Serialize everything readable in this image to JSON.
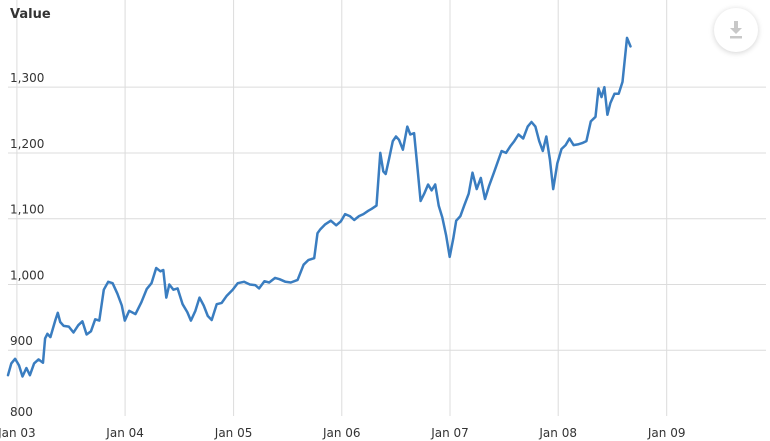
{
  "chart_data": {
    "type": "line",
    "ylabel": "Value",
    "xlabel": "",
    "ylim": [
      800,
      1390
    ],
    "xlim": [
      "2002-11-01",
      "2009-11-01"
    ],
    "y_ticks": [
      "900",
      "1,000",
      "1,100",
      "1,200",
      "1,300"
    ],
    "y_bottom_label": "800",
    "x_ticks": [
      {
        "date": "2002-12-01",
        "label": "Jan 03"
      },
      {
        "date": "2003-12-01",
        "label": "Jan 04"
      },
      {
        "date": "2004-12-01",
        "label": "Jan 05"
      },
      {
        "date": "2005-12-01",
        "label": "Jan 06"
      },
      {
        "date": "2006-12-01",
        "label": "Jan 07"
      },
      {
        "date": "2007-12-01",
        "label": "Jan 08"
      },
      {
        "date": "2008-12-01",
        "label": "Jan 09"
      }
    ],
    "grid": true,
    "legend": "none",
    "series": [
      {
        "color": "#3a7dc0",
        "points": [
          [
            "2002-11-01",
            862
          ],
          [
            "2002-11-12",
            880
          ],
          [
            "2002-11-25",
            887
          ],
          [
            "2002-12-08",
            877
          ],
          [
            "2002-12-20",
            860
          ],
          [
            "2003-01-02",
            873
          ],
          [
            "2003-01-14",
            862
          ],
          [
            "2003-01-28",
            880
          ],
          [
            "2003-02-12",
            886
          ],
          [
            "2003-02-27",
            881
          ],
          [
            "2003-03-06",
            918
          ],
          [
            "2003-03-14",
            925
          ],
          [
            "2003-03-24",
            920
          ],
          [
            "2003-04-10",
            946
          ],
          [
            "2003-04-18",
            957
          ],
          [
            "2003-04-26",
            943
          ],
          [
            "2003-05-08",
            937
          ],
          [
            "2003-05-25",
            936
          ],
          [
            "2003-06-10",
            927
          ],
          [
            "2003-06-26",
            938
          ],
          [
            "2003-07-10",
            944
          ],
          [
            "2003-07-24",
            924
          ],
          [
            "2003-08-08",
            929
          ],
          [
            "2003-08-22",
            947
          ],
          [
            "2003-09-05",
            945
          ],
          [
            "2003-09-20",
            992
          ],
          [
            "2003-10-05",
            1004
          ],
          [
            "2003-10-20",
            1002
          ],
          [
            "2003-11-05",
            986
          ],
          [
            "2003-11-20",
            968
          ],
          [
            "2003-11-30",
            945
          ],
          [
            "2003-12-15",
            960
          ],
          [
            "2004-01-05",
            955
          ],
          [
            "2004-01-25",
            973
          ],
          [
            "2004-02-12",
            993
          ],
          [
            "2004-02-28",
            1002
          ],
          [
            "2004-03-15",
            1025
          ],
          [
            "2004-03-29",
            1020
          ],
          [
            "2004-04-08",
            1022
          ],
          [
            "2004-04-18",
            980
          ],
          [
            "2004-04-28",
            1000
          ],
          [
            "2004-05-12",
            992
          ],
          [
            "2004-05-26",
            994
          ],
          [
            "2004-06-12",
            970
          ],
          [
            "2004-06-28",
            958
          ],
          [
            "2004-07-10",
            945
          ],
          [
            "2004-07-25",
            960
          ],
          [
            "2004-08-08",
            980
          ],
          [
            "2004-08-22",
            968
          ],
          [
            "2004-09-05",
            952
          ],
          [
            "2004-09-18",
            946
          ],
          [
            "2004-10-05",
            970
          ],
          [
            "2004-10-22",
            972
          ],
          [
            "2004-11-08",
            983
          ],
          [
            "2004-11-28",
            992
          ],
          [
            "2004-12-15",
            1002
          ],
          [
            "2005-01-05",
            1004
          ],
          [
            "2005-01-25",
            1000
          ],
          [
            "2005-02-12",
            999
          ],
          [
            "2005-02-25",
            994
          ],
          [
            "2005-03-15",
            1005
          ],
          [
            "2005-03-31",
            1003
          ],
          [
            "2005-04-20",
            1010
          ],
          [
            "2005-05-05",
            1008
          ],
          [
            "2005-05-25",
            1004
          ],
          [
            "2005-06-12",
            1003
          ],
          [
            "2005-07-05",
            1007
          ],
          [
            "2005-07-25",
            1030
          ],
          [
            "2005-08-10",
            1037
          ],
          [
            "2005-08-30",
            1040
          ],
          [
            "2005-09-10",
            1078
          ],
          [
            "2005-09-20",
            1084
          ],
          [
            "2005-10-05",
            1091
          ],
          [
            "2005-10-25",
            1097
          ],
          [
            "2005-11-12",
            1090
          ],
          [
            "2005-11-28",
            1096
          ],
          [
            "2005-12-12",
            1107
          ],
          [
            "2005-12-28",
            1104
          ],
          [
            "2006-01-12",
            1098
          ],
          [
            "2006-01-28",
            1104
          ],
          [
            "2006-02-12",
            1107
          ],
          [
            "2006-02-28",
            1112
          ],
          [
            "2006-03-12",
            1115
          ],
          [
            "2006-03-28",
            1120
          ],
          [
            "2006-04-10",
            1200
          ],
          [
            "2006-04-20",
            1172
          ],
          [
            "2006-04-28",
            1168
          ],
          [
            "2006-05-10",
            1192
          ],
          [
            "2006-05-22",
            1218
          ],
          [
            "2006-06-02",
            1225
          ],
          [
            "2006-06-12",
            1220
          ],
          [
            "2006-06-25",
            1205
          ],
          [
            "2006-07-10",
            1240
          ],
          [
            "2006-07-20",
            1228
          ],
          [
            "2006-08-02",
            1230
          ],
          [
            "2006-08-12",
            1183
          ],
          [
            "2006-08-24",
            1127
          ],
          [
            "2006-09-05",
            1138
          ],
          [
            "2006-09-18",
            1152
          ],
          [
            "2006-09-30",
            1143
          ],
          [
            "2006-10-12",
            1152
          ],
          [
            "2006-10-24",
            1120
          ],
          [
            "2006-11-05",
            1102
          ],
          [
            "2006-11-18",
            1075
          ],
          [
            "2006-11-30",
            1042
          ],
          [
            "2006-12-12",
            1070
          ],
          [
            "2006-12-22",
            1097
          ],
          [
            "2007-01-05",
            1104
          ],
          [
            "2007-01-18",
            1120
          ],
          [
            "2007-02-02",
            1138
          ],
          [
            "2007-02-15",
            1170
          ],
          [
            "2007-03-01",
            1145
          ],
          [
            "2007-03-15",
            1162
          ],
          [
            "2007-03-29",
            1130
          ],
          [
            "2007-04-12",
            1150
          ],
          [
            "2007-04-28",
            1170
          ],
          [
            "2007-05-10",
            1185
          ],
          [
            "2007-05-24",
            1203
          ],
          [
            "2007-06-08",
            1200
          ],
          [
            "2007-06-22",
            1210
          ],
          [
            "2007-07-06",
            1218
          ],
          [
            "2007-07-20",
            1228
          ],
          [
            "2007-08-05",
            1222
          ],
          [
            "2007-08-20",
            1240
          ],
          [
            "2007-09-02",
            1247
          ],
          [
            "2007-09-15",
            1240
          ],
          [
            "2007-09-28",
            1218
          ],
          [
            "2007-10-10",
            1203
          ],
          [
            "2007-10-22",
            1225
          ],
          [
            "2007-11-03",
            1190
          ],
          [
            "2007-11-14",
            1145
          ],
          [
            "2007-11-28",
            1184
          ],
          [
            "2007-12-12",
            1206
          ],
          [
            "2007-12-26",
            1212
          ],
          [
            "2008-01-08",
            1222
          ],
          [
            "2008-01-22",
            1212
          ],
          [
            "2008-02-05",
            1213
          ],
          [
            "2008-02-20",
            1215
          ],
          [
            "2008-03-05",
            1218
          ],
          [
            "2008-03-20",
            1248
          ],
          [
            "2008-04-05",
            1255
          ],
          [
            "2008-04-15",
            1298
          ],
          [
            "2008-04-25",
            1285
          ],
          [
            "2008-05-05",
            1300
          ],
          [
            "2008-05-15",
            1258
          ],
          [
            "2008-05-25",
            1276
          ],
          [
            "2008-06-08",
            1290
          ],
          [
            "2008-06-22",
            1290
          ],
          [
            "2008-07-05",
            1308
          ],
          [
            "2008-07-20",
            1375
          ],
          [
            "2008-08-01",
            1362
          ]
        ]
      }
    ]
  },
  "toolbar": {
    "download_icon": "download-icon"
  }
}
